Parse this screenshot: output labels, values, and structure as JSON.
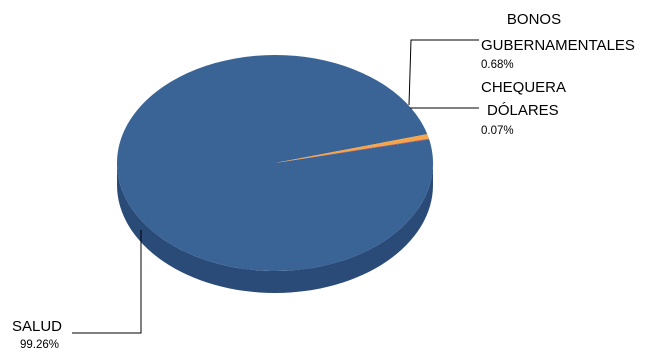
{
  "chart_data": {
    "type": "pie",
    "style": "3d",
    "title": "",
    "slices": [
      {
        "label": "SALUD",
        "value": 99.26,
        "value_label": "99.26%",
        "color": "#3a6496"
      },
      {
        "label": "BONOS GUBERNAMENTALES",
        "value": 0.68,
        "value_label": "0.68%",
        "color": "#f5a64a"
      },
      {
        "label": "CHEQUERA DÓLARES",
        "value": 0.07,
        "value_label": "0.07%",
        "color": "#c0504d"
      }
    ],
    "side_color": "#2a4a78",
    "leader_line_color": "#000000"
  }
}
